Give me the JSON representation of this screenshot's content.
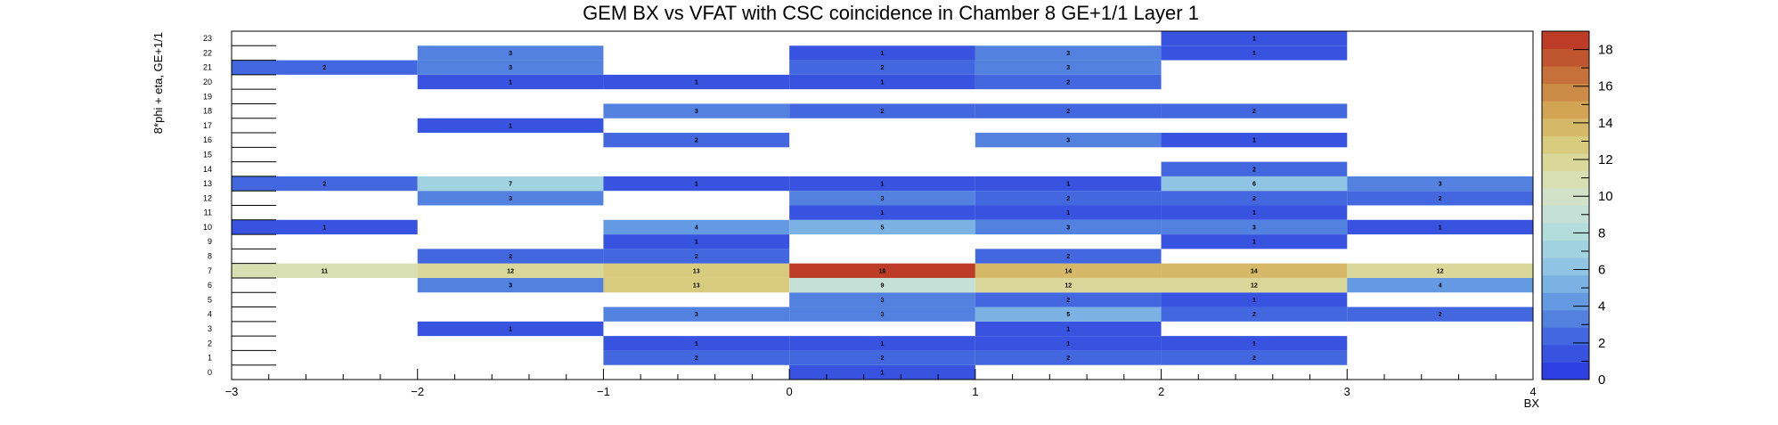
{
  "chart_data": {
    "type": "heatmap",
    "title": "GEM BX vs VFAT with CSC coincidence in Chamber 8 GE+1/1 Layer 1",
    "xlabel": "BX",
    "ylabel": "8*phi + eta, GE+1/1",
    "xlim": [
      -3,
      4
    ],
    "ylim": [
      0,
      24
    ],
    "x_bins": [
      -3,
      -2,
      -1,
      0,
      1,
      2,
      3,
      4
    ],
    "y_bins": 24,
    "x_tick_labels": [
      "−3",
      "−2",
      "−1",
      "0",
      "1",
      "2",
      "3",
      "4"
    ],
    "y_tick_labels": [
      "0",
      "1",
      "2",
      "3",
      "4",
      "5",
      "6",
      "7",
      "8",
      "9",
      "10",
      "11",
      "12",
      "13",
      "14",
      "15",
      "16",
      "17",
      "18",
      "19",
      "20",
      "21",
      "22",
      "23"
    ],
    "z_range": [
      0,
      19
    ],
    "colorbar_ticks": [
      0,
      2,
      4,
      6,
      8,
      10,
      12,
      14,
      16,
      18
    ],
    "cells": [
      {
        "x": 0.5,
        "y": 0,
        "z": 1
      },
      {
        "x": -0.5,
        "y": 1,
        "z": 2
      },
      {
        "x": 0.5,
        "y": 1,
        "z": 2
      },
      {
        "x": 1.5,
        "y": 1,
        "z": 2
      },
      {
        "x": 2.5,
        "y": 1,
        "z": 2
      },
      {
        "x": -0.5,
        "y": 2,
        "z": 1
      },
      {
        "x": 0.5,
        "y": 2,
        "z": 1
      },
      {
        "x": 1.5,
        "y": 2,
        "z": 1
      },
      {
        "x": 2.5,
        "y": 2,
        "z": 1
      },
      {
        "x": -1.5,
        "y": 3,
        "z": 1
      },
      {
        "x": 1.5,
        "y": 3,
        "z": 1
      },
      {
        "x": -0.5,
        "y": 4,
        "z": 3
      },
      {
        "x": 0.5,
        "y": 4,
        "z": 3
      },
      {
        "x": 1.5,
        "y": 4,
        "z": 5
      },
      {
        "x": 2.5,
        "y": 4,
        "z": 2
      },
      {
        "x": 3.5,
        "y": 4,
        "z": 2
      },
      {
        "x": 0.5,
        "y": 5,
        "z": 3
      },
      {
        "x": 1.5,
        "y": 5,
        "z": 2
      },
      {
        "x": 2.5,
        "y": 5,
        "z": 1
      },
      {
        "x": -1.5,
        "y": 6,
        "z": 3
      },
      {
        "x": -0.5,
        "y": 6,
        "z": 13
      },
      {
        "x": 0.5,
        "y": 6,
        "z": 9
      },
      {
        "x": 1.5,
        "y": 6,
        "z": 12
      },
      {
        "x": 2.5,
        "y": 6,
        "z": 12
      },
      {
        "x": 3.5,
        "y": 6,
        "z": 4
      },
      {
        "x": -2.5,
        "y": 7,
        "z": 11
      },
      {
        "x": -1.5,
        "y": 7,
        "z": 12
      },
      {
        "x": -0.5,
        "y": 7,
        "z": 13
      },
      {
        "x": 0.5,
        "y": 7,
        "z": 19
      },
      {
        "x": 1.5,
        "y": 7,
        "z": 14
      },
      {
        "x": 2.5,
        "y": 7,
        "z": 14
      },
      {
        "x": 3.5,
        "y": 7,
        "z": 12
      },
      {
        "x": -1.5,
        "y": 8,
        "z": 2
      },
      {
        "x": -0.5,
        "y": 8,
        "z": 2
      },
      {
        "x": 1.5,
        "y": 8,
        "z": 2
      },
      {
        "x": -0.5,
        "y": 9,
        "z": 1
      },
      {
        "x": 2.5,
        "y": 9,
        "z": 1
      },
      {
        "x": -2.5,
        "y": 10,
        "z": 1
      },
      {
        "x": -0.5,
        "y": 10,
        "z": 4
      },
      {
        "x": 0.5,
        "y": 10,
        "z": 5
      },
      {
        "x": 1.5,
        "y": 10,
        "z": 3
      },
      {
        "x": 2.5,
        "y": 10,
        "z": 3
      },
      {
        "x": 3.5,
        "y": 10,
        "z": 1
      },
      {
        "x": 0.5,
        "y": 11,
        "z": 1
      },
      {
        "x": 1.5,
        "y": 11,
        "z": 1
      },
      {
        "x": 2.5,
        "y": 11,
        "z": 1
      },
      {
        "x": -1.5,
        "y": 12,
        "z": 3
      },
      {
        "x": 0.5,
        "y": 12,
        "z": 3
      },
      {
        "x": 1.5,
        "y": 12,
        "z": 2
      },
      {
        "x": 2.5,
        "y": 12,
        "z": 2
      },
      {
        "x": 3.5,
        "y": 12,
        "z": 2
      },
      {
        "x": -2.5,
        "y": 13,
        "z": 2
      },
      {
        "x": -1.5,
        "y": 13,
        "z": 7
      },
      {
        "x": -0.5,
        "y": 13,
        "z": 1
      },
      {
        "x": 0.5,
        "y": 13,
        "z": 1
      },
      {
        "x": 1.5,
        "y": 13,
        "z": 1
      },
      {
        "x": 2.5,
        "y": 13,
        "z": 6
      },
      {
        "x": 3.5,
        "y": 13,
        "z": 3
      },
      {
        "x": 2.5,
        "y": 14,
        "z": 2
      },
      {
        "x": -0.5,
        "y": 16,
        "z": 2
      },
      {
        "x": 1.5,
        "y": 16,
        "z": 3
      },
      {
        "x": 2.5,
        "y": 16,
        "z": 1
      },
      {
        "x": -1.5,
        "y": 17,
        "z": 1
      },
      {
        "x": -0.5,
        "y": 18,
        "z": 3
      },
      {
        "x": 0.5,
        "y": 18,
        "z": 2
      },
      {
        "x": 1.5,
        "y": 18,
        "z": 2
      },
      {
        "x": 2.5,
        "y": 18,
        "z": 2
      },
      {
        "x": -1.5,
        "y": 20,
        "z": 1
      },
      {
        "x": -0.5,
        "y": 20,
        "z": 1
      },
      {
        "x": 0.5,
        "y": 20,
        "z": 1
      },
      {
        "x": 1.5,
        "y": 20,
        "z": 2
      },
      {
        "x": -2.5,
        "y": 21,
        "z": 2
      },
      {
        "x": -1.5,
        "y": 21,
        "z": 3
      },
      {
        "x": 0.5,
        "y": 21,
        "z": 2
      },
      {
        "x": 1.5,
        "y": 21,
        "z": 3
      },
      {
        "x": -1.5,
        "y": 22,
        "z": 3
      },
      {
        "x": 0.5,
        "y": 22,
        "z": 1
      },
      {
        "x": 1.5,
        "y": 22,
        "z": 3
      },
      {
        "x": 2.5,
        "y": 22,
        "z": 1
      },
      {
        "x": 2.5,
        "y": 23,
        "z": 1
      }
    ],
    "legend": "colorbar right"
  }
}
